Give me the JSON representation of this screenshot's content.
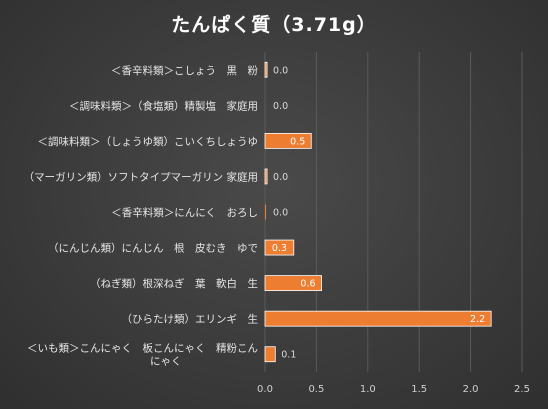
{
  "chart_data": {
    "type": "bar",
    "orientation": "horizontal",
    "title": "たんぱく質（3.71g）",
    "categories": [
      [
        "＜香辛料類＞こしょう　黒　粉"
      ],
      [
        "＜調味料類＞（食塩類）精製塩　家庭用"
      ],
      [
        "＜調味料類＞（しょうゆ類）こいくちしょうゆ"
      ],
      [
        "（マーガリン類）ソフトタイプマーガリン 家庭用"
      ],
      [
        "＜香辛料類＞にんにく　おろし"
      ],
      [
        "（にんじん類）にんじん　根　皮むき　ゆで"
      ],
      [
        "（ねぎ類）根深ねぎ　葉　軟白　生"
      ],
      [
        "（ひらたけ類）エリンギ　生"
      ],
      [
        "＜いも類＞こんにゃく　板こんにゃく　精粉こん",
        "にゃく"
      ]
    ],
    "values": [
      0.02,
      0.0,
      0.45,
      0.02,
      0.01,
      0.28,
      0.55,
      2.2,
      0.1
    ],
    "data_labels": [
      "0.0",
      "0.0",
      "0.5",
      "0.0",
      "0.0",
      "0.3",
      "0.6",
      "2.2",
      "0.1"
    ],
    "xlim": [
      0,
      2.5
    ],
    "ticks": [
      "0.0",
      "0.5",
      "1.0",
      "1.5",
      "2.0",
      "2.5"
    ],
    "grid": true,
    "colors": {
      "bar": "#ed7d31",
      "bar_border": "#ffffff",
      "text": "#e6e6e6"
    }
  }
}
